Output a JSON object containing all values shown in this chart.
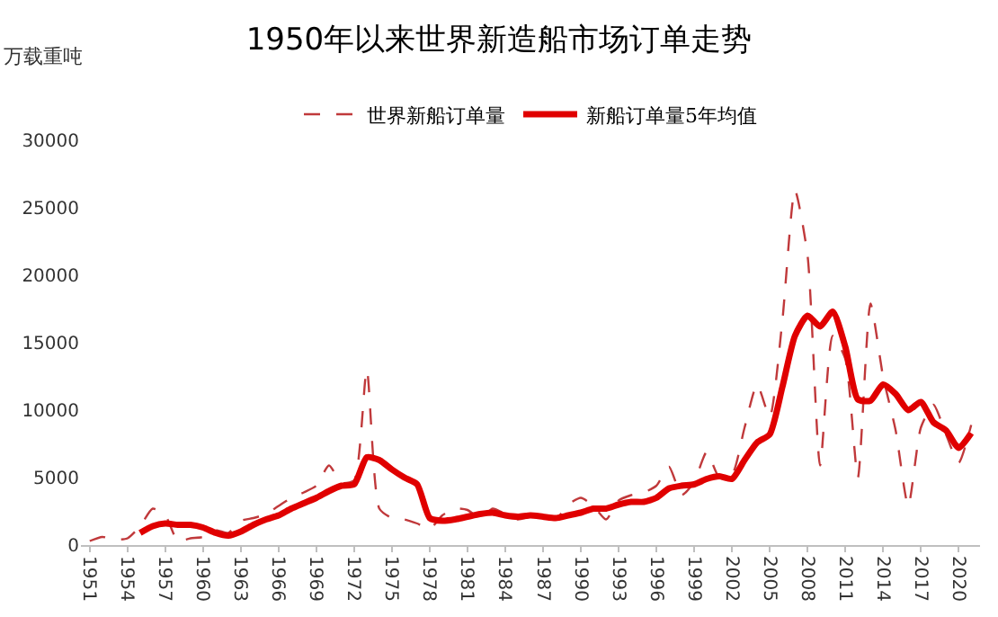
{
  "chart_data": {
    "type": "line",
    "title": "1950年以来世界新造船市场订单走势",
    "ylabel": "万载重吨",
    "x": [
      1951,
      1952,
      1953,
      1954,
      1955,
      1956,
      1957,
      1958,
      1959,
      1960,
      1961,
      1962,
      1963,
      1964,
      1965,
      1966,
      1967,
      1968,
      1969,
      1970,
      1971,
      1972,
      1973,
      1974,
      1975,
      1976,
      1977,
      1978,
      1979,
      1980,
      1981,
      1982,
      1983,
      1984,
      1985,
      1986,
      1987,
      1988,
      1989,
      1990,
      1991,
      1992,
      1993,
      1994,
      1995,
      1996,
      1997,
      1998,
      1999,
      2000,
      2001,
      2002,
      2003,
      2004,
      2005,
      2006,
      2007,
      2008,
      2009,
      2010,
      2011,
      2012,
      2013,
      2014,
      2015,
      2016,
      2017,
      2018,
      2019,
      2020,
      2021
    ],
    "series": [
      {
        "name": "世界新船订单量",
        "color": "#c0393b",
        "line_style": "dashed",
        "values": [
          300,
          600,
          400,
          500,
          1400,
          2700,
          2200,
          300,
          500,
          600,
          1100,
          900,
          1800,
          2000,
          2300,
          2900,
          3500,
          3900,
          4400,
          5900,
          4600,
          4800,
          13000,
          2700,
          2000,
          1900,
          1600,
          1200,
          2200,
          2700,
          2600,
          2000,
          2700,
          2300,
          1900,
          2100,
          2200,
          1900,
          3000,
          3500,
          2900,
          1900,
          3300,
          3700,
          3900,
          4400,
          5800,
          3700,
          4700,
          6900,
          5000,
          5200,
          8700,
          11900,
          9500,
          16600,
          26300,
          21500,
          5900,
          15500,
          13800,
          5000,
          17900,
          12500,
          8500,
          2900,
          8700,
          10400,
          8200,
          6100,
          8900
        ]
      },
      {
        "name": "新船订单量5年均值",
        "color": "#e00000",
        "line_style": "solid",
        "values": [
          null,
          null,
          null,
          null,
          900,
          1400,
          1600,
          1500,
          1500,
          1300,
          900,
          700,
          1000,
          1500,
          1900,
          2200,
          2700,
          3100,
          3500,
          4000,
          4400,
          4500,
          6500,
          6300,
          5600,
          5000,
          4500,
          2000,
          1800,
          1900,
          2100,
          2300,
          2400,
          2200,
          2100,
          2200,
          2100,
          2000,
          2200,
          2400,
          2700,
          2700,
          3000,
          3200,
          3200,
          3500,
          4200,
          4400,
          4500,
          4900,
          5100,
          4900,
          6300,
          7600,
          8200,
          11700,
          15500,
          17000,
          16200,
          17300,
          14700,
          10800,
          10700,
          11900,
          11200,
          10000,
          10600,
          9100,
          8500,
          7200,
          8300
        ]
      }
    ],
    "xlim": [
      1950.3,
      2021.7
    ],
    "xticks": [
      1951,
      1954,
      1957,
      1960,
      1963,
      1966,
      1969,
      1972,
      1975,
      1978,
      1981,
      1984,
      1987,
      1990,
      1993,
      1996,
      1999,
      2002,
      2005,
      2008,
      2011,
      2014,
      2017,
      2020
    ],
    "ylim": [
      0,
      30000
    ],
    "yticks": [
      0,
      5000,
      10000,
      15000,
      20000,
      25000,
      30000
    ],
    "grid": false,
    "legend": "top",
    "marker": "none"
  }
}
